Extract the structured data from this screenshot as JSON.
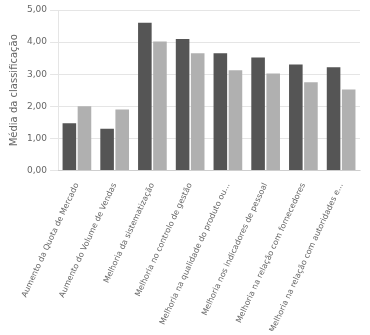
{
  "chart_data": {
    "type": "bar",
    "categories": [
      "Aumento da Quota de Mercado",
      "Aumento do Volume de Vendas",
      "Melhoria da sistematização",
      "Melhoria no controlo de gestão",
      "Melhoria na qualidade do produto ou...",
      "Melhoria nos indicadores de pessoal",
      "Melhoria na relação com fornecedores",
      "Melhoria na relação com autoridades e..."
    ],
    "series": [
      {
        "color": "#555555",
        "values": [
          1.47,
          1.3,
          4.6,
          4.1,
          3.65,
          3.52,
          3.3,
          3.22
        ]
      },
      {
        "color": "#b0b0b0",
        "values": [
          2.0,
          1.9,
          4.02,
          3.65,
          3.12,
          3.02,
          2.75,
          2.52
        ]
      }
    ],
    "ylabel": "Média da classificação",
    "ylim": [
      0,
      5.0
    ],
    "yticks": [
      {
        "value": 0.0,
        "label": "0,00"
      },
      {
        "value": 1.0,
        "label": "1,00"
      },
      {
        "value": 2.0,
        "label": "2,00"
      },
      {
        "value": 3.0,
        "label": "3,00"
      },
      {
        "value": 4.0,
        "label": "4,00"
      },
      {
        "value": 5.0,
        "label": "5,00"
      }
    ],
    "grid": true
  }
}
